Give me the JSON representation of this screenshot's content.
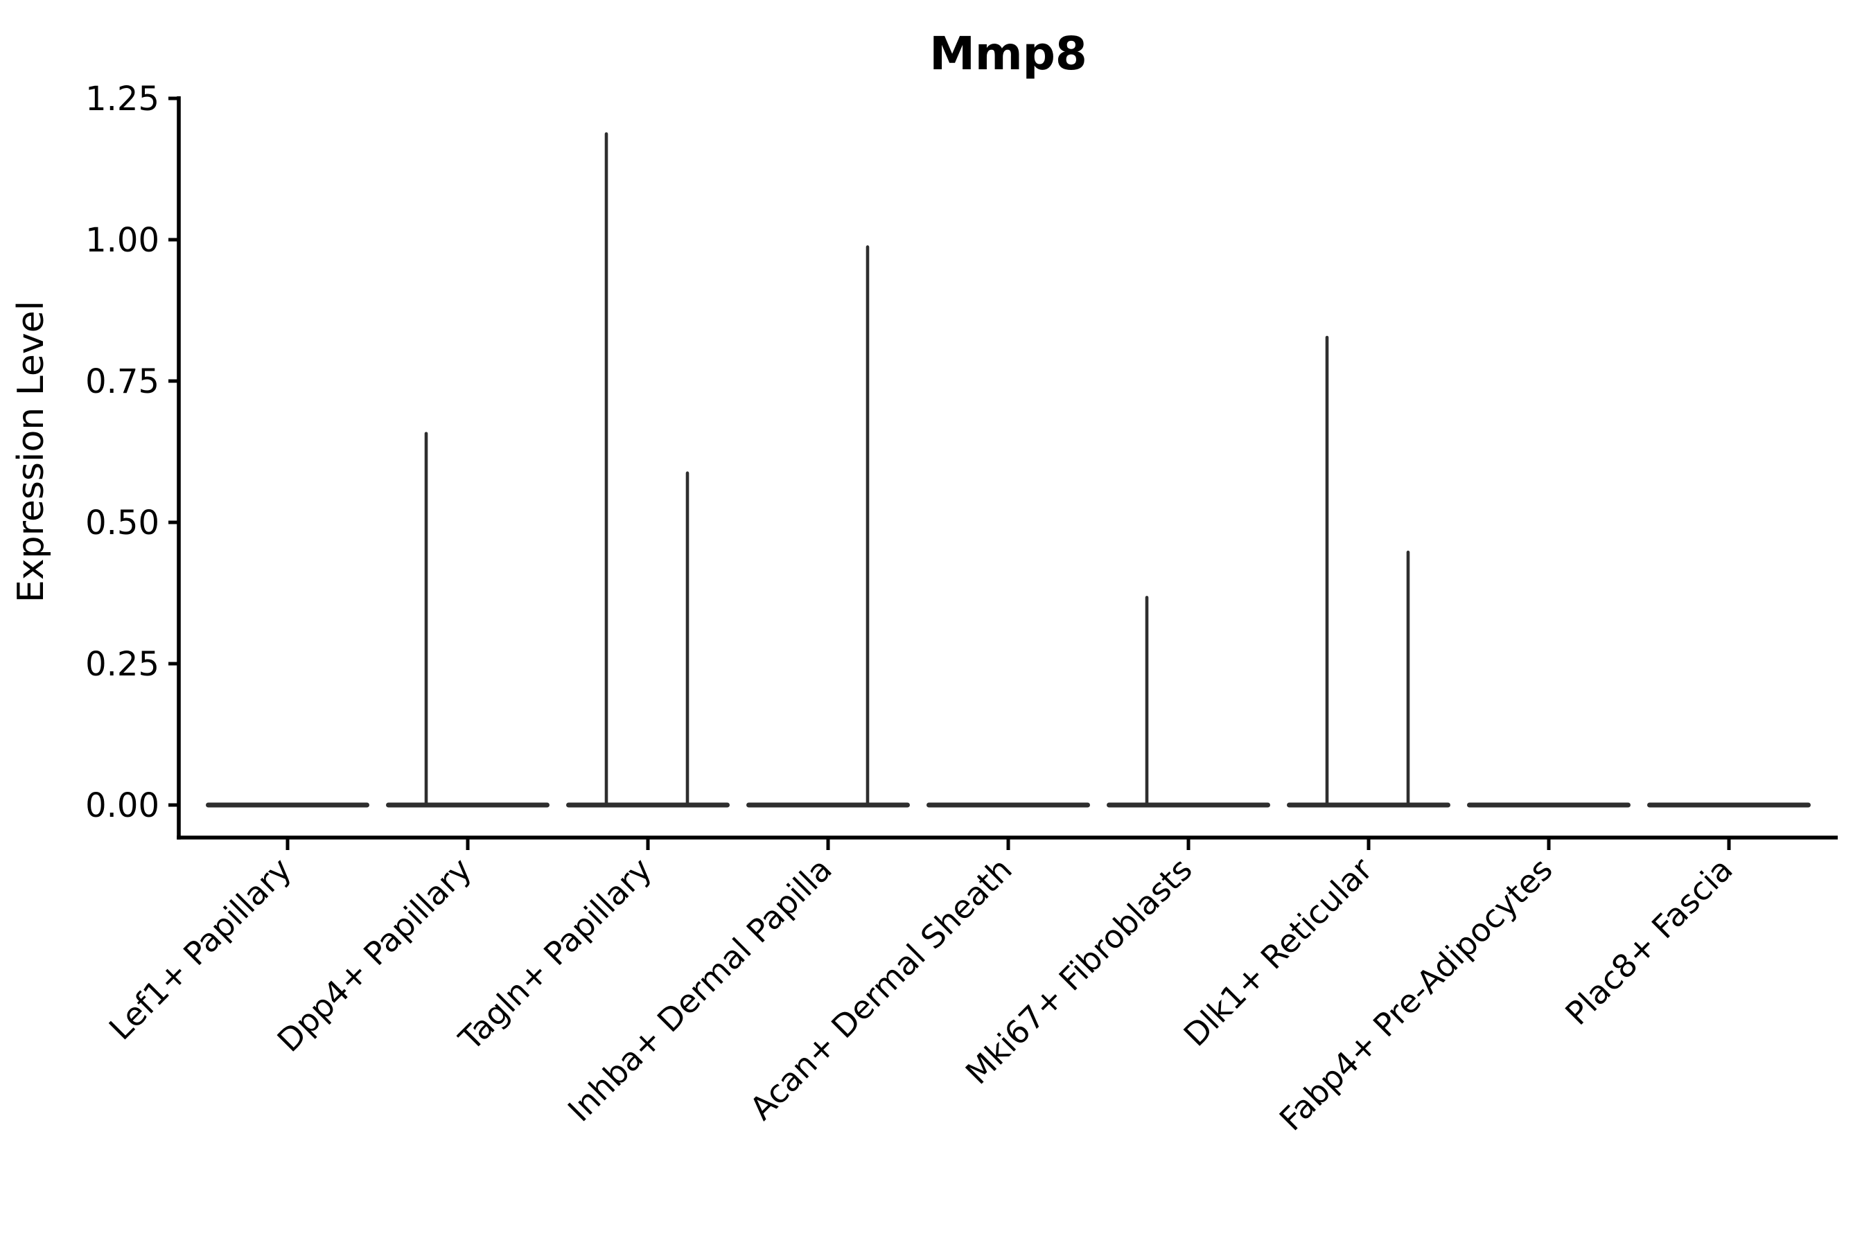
{
  "chart_data": {
    "type": "violin",
    "title": "Mmp8",
    "xlabel": "",
    "ylabel": "Expression Level",
    "ylim": [
      0,
      1.25
    ],
    "grid": false,
    "legend": null,
    "yticks": [
      {
        "value": 0.0,
        "label": "0.00"
      },
      {
        "value": 0.25,
        "label": "0.25"
      },
      {
        "value": 0.5,
        "label": "0.50"
      },
      {
        "value": 0.75,
        "label": "0.75"
      },
      {
        "value": 1.0,
        "label": "1.00"
      },
      {
        "value": 1.25,
        "label": "1.25"
      }
    ],
    "categories": [
      "Lef1+ Papillary",
      "Dpp4+ Papillary",
      "Tagln+ Papillary",
      "Inhba+ Dermal Papilla",
      "Acan+ Dermal Sheath",
      "Mki67+ Fibroblasts",
      "Dlk1+ Reticular",
      "Fabp4+ Pre-Adipocytes",
      "Plac8+ Fascia"
    ],
    "violins": [
      {
        "category": "Lef1+ Papillary",
        "zero_body": true,
        "spikes": []
      },
      {
        "category": "Dpp4+ Papillary",
        "zero_body": true,
        "spikes": [
          {
            "side": "left",
            "max_expression": 0.66
          }
        ]
      },
      {
        "category": "Tagln+ Papillary",
        "zero_body": true,
        "spikes": [
          {
            "side": "left",
            "max_expression": 1.19
          },
          {
            "side": "right",
            "max_expression": 0.59
          }
        ]
      },
      {
        "category": "Inhba+ Dermal Papilla",
        "zero_body": true,
        "spikes": [
          {
            "side": "right",
            "max_expression": 0.99
          }
        ]
      },
      {
        "category": "Acan+ Dermal Sheath",
        "zero_body": true,
        "spikes": []
      },
      {
        "category": "Mki67+ Fibroblasts",
        "zero_body": true,
        "spikes": [
          {
            "side": "left",
            "max_expression": 0.37
          }
        ]
      },
      {
        "category": "Dlk1+ Reticular",
        "zero_body": true,
        "spikes": [
          {
            "side": "left",
            "max_expression": 0.83
          },
          {
            "side": "right",
            "max_expression": 0.45
          }
        ]
      },
      {
        "category": "Fabp4+ Pre-Adipocytes",
        "zero_body": true,
        "spikes": []
      },
      {
        "category": "Plac8+ Fascia",
        "zero_body": true,
        "spikes": []
      }
    ],
    "colors": {
      "violin": "#2e2e2e",
      "axis": "#000000",
      "text": "#000000",
      "background": "#ffffff"
    }
  }
}
